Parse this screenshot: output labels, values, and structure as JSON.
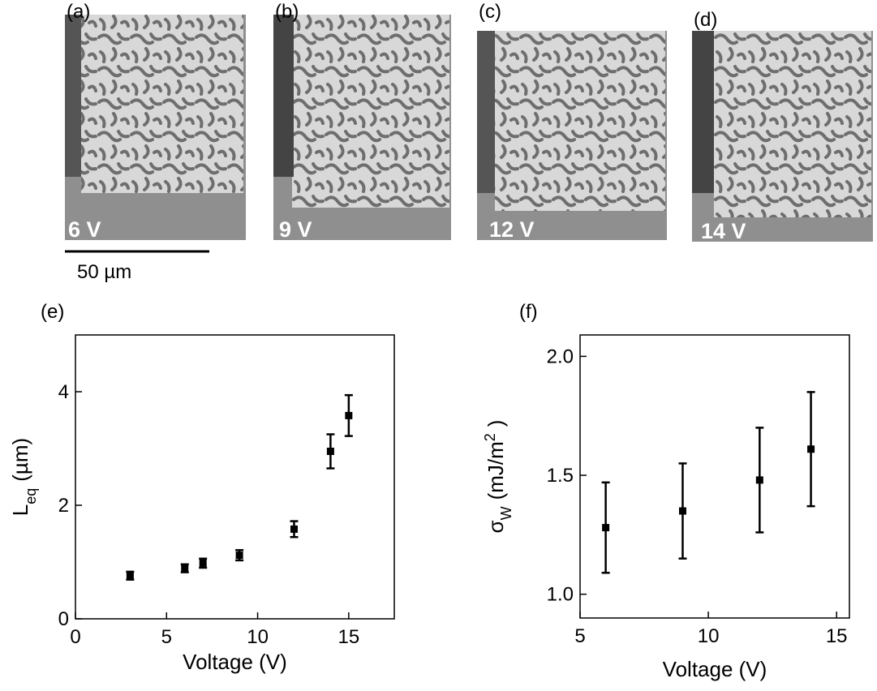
{
  "images": [
    {
      "label": "(a)",
      "caption": "6 V"
    },
    {
      "label": "(b)",
      "caption": "9 V"
    },
    {
      "label": "(c)",
      "caption": "12 V"
    },
    {
      "label": "(d)",
      "caption": "14 V"
    }
  ],
  "scale_bar": "50 µm",
  "chart_data": [
    {
      "type": "scatter",
      "label": "(e)",
      "xlabel": "Voltage (V)",
      "ylabel": [
        {
          "text": "L"
        },
        {
          "text": "eq",
          "shift": "sub"
        },
        {
          "text": "(µm)"
        }
      ],
      "x": [
        3,
        6,
        7,
        9,
        12,
        14,
        15
      ],
      "values": [
        0.76,
        0.89,
        0.98,
        1.12,
        1.58,
        2.95,
        3.58
      ],
      "errors": [
        0.07,
        0.07,
        0.08,
        0.09,
        0.14,
        0.3,
        0.36
      ],
      "color": "#000000",
      "xlim": [
        0,
        17.5
      ],
      "ylim": [
        0,
        5
      ],
      "xticks": [
        0,
        5,
        10,
        15
      ],
      "yticks": [
        0,
        2,
        4
      ]
    },
    {
      "type": "scatter",
      "label": "(f)",
      "xlabel": "Voltage (V)",
      "ylabel": [
        {
          "text": "σ"
        },
        {
          "text": "W",
          "shift": "sub"
        },
        {
          "text": "(mJ/m"
        },
        {
          "text": "2",
          "shift": "super"
        },
        {
          "text": ")"
        }
      ],
      "x": [
        6,
        9,
        12,
        14
      ],
      "values": [
        1.28,
        1.35,
        1.48,
        1.61
      ],
      "errors": [
        0.19,
        0.2,
        0.22,
        0.24
      ],
      "color": "#000000",
      "xlim": [
        5,
        15.5
      ],
      "ylim": [
        0.9,
        2.09
      ],
      "xticks": [
        5,
        10,
        15
      ],
      "yticks": [
        {
          "value": 1.0,
          "label": "1.0"
        },
        {
          "value": 1.5,
          "label": "1.5"
        },
        {
          "value": 2.0,
          "label": "2.0"
        }
      ]
    }
  ]
}
